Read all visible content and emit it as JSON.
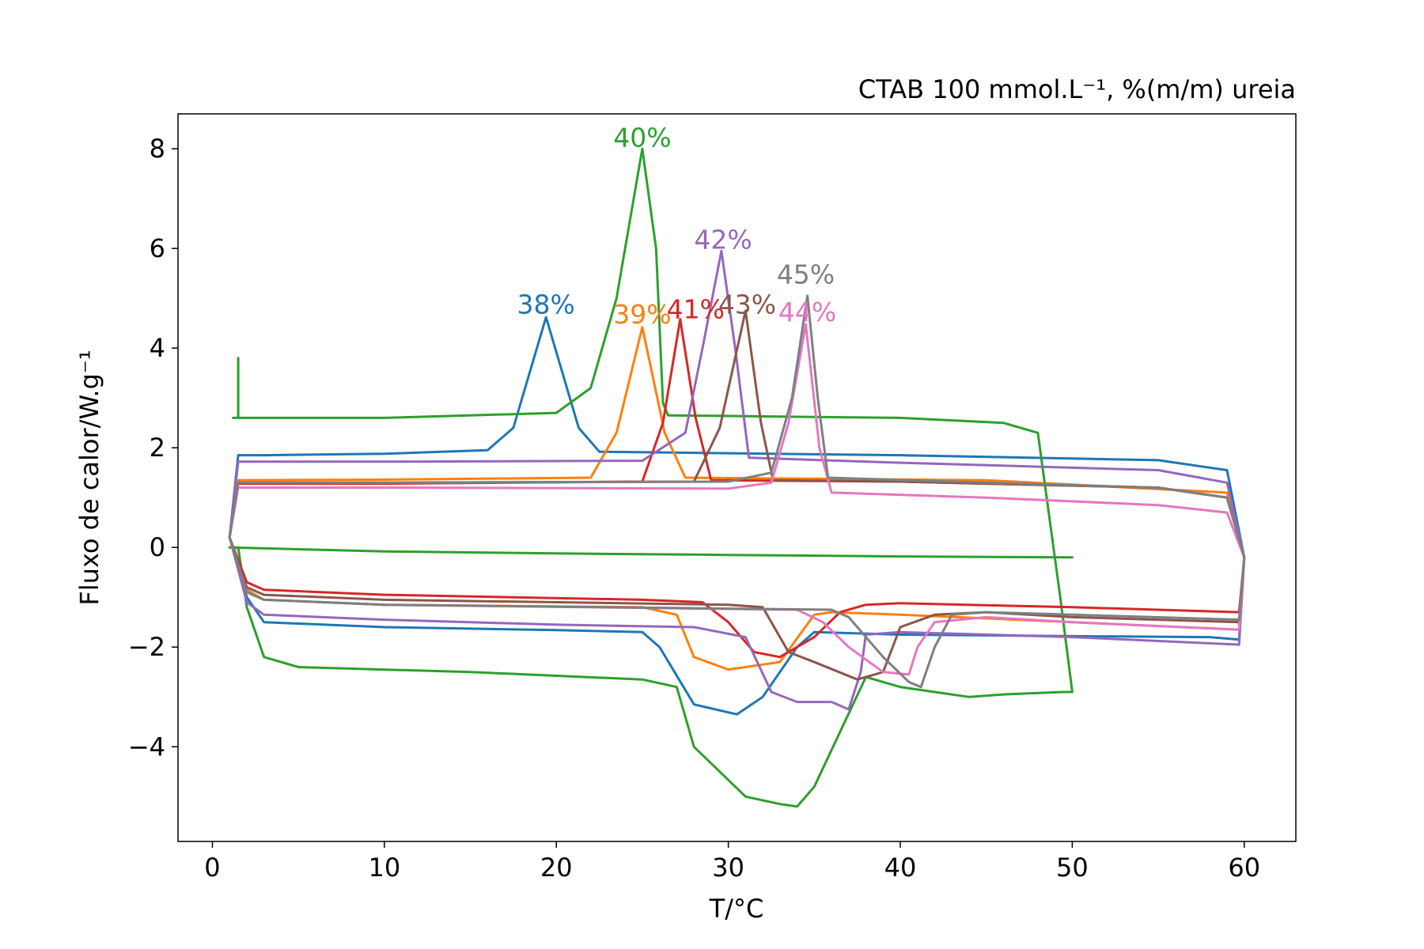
{
  "chart_data": {
    "type": "line",
    "title": "CTAB 100 mmol.L⁻¹, %(m/m) ureia",
    "title_loc": "right",
    "xlabel": "T/°C",
    "ylabel": "Fluxo de calor/W.g⁻¹",
    "xlim": [
      -2,
      63
    ],
    "ylim": [
      -5.9,
      8.7
    ],
    "xticks": [
      0,
      10,
      20,
      30,
      40,
      50,
      60
    ],
    "yticks": [
      -4,
      -2,
      0,
      2,
      4,
      6,
      8
    ],
    "ytick_labels": [
      "−4",
      "−2",
      "0",
      "2",
      "4",
      "6",
      "8"
    ],
    "grid": false,
    "legend": "none",
    "series": [
      {
        "color": "#1f77b4",
        "label": "38%",
        "label_pos": [
          19.4,
          4.6
        ],
        "x": [
          1,
          1.5,
          3,
          10,
          16,
          17.5,
          19.4,
          21.3,
          22.5,
          40,
          55,
          59,
          60,
          59.7,
          58,
          50,
          40,
          35,
          34,
          32,
          30.5,
          28,
          26,
          25,
          20,
          10,
          3,
          2,
          1
        ],
        "y": [
          0.2,
          1.85,
          1.85,
          1.88,
          1.95,
          2.4,
          4.62,
          2.4,
          1.92,
          1.85,
          1.75,
          1.55,
          -0.2,
          -1.85,
          -1.8,
          -1.78,
          -1.75,
          -1.7,
          -2.0,
          -3.0,
          -3.35,
          -3.15,
          -2.0,
          -1.7,
          -1.66,
          -1.6,
          -1.5,
          -1.0,
          0.2
        ]
      },
      {
        "color": "#ff7f0e",
        "label": "39%",
        "label_pos": [
          25.0,
          4.4
        ],
        "x": [
          1,
          1.5,
          10,
          22,
          23.5,
          25,
          26.3,
          27.5,
          45,
          59,
          60,
          59.7,
          50,
          40,
          36,
          35,
          33,
          30,
          28,
          27,
          25,
          10,
          3,
          2,
          1
        ],
        "y": [
          0.2,
          1.35,
          1.36,
          1.4,
          2.3,
          4.42,
          2.3,
          1.4,
          1.35,
          1.1,
          -0.2,
          -1.65,
          -1.5,
          -1.35,
          -1.3,
          -1.35,
          -2.3,
          -2.45,
          -2.2,
          -1.35,
          -1.2,
          -1.15,
          -1.05,
          -0.85,
          0.2
        ]
      },
      {
        "color": "#2ca02c",
        "label": "40%",
        "label_pos": [
          25.0,
          7.95
        ],
        "x": [
          1.5,
          1.5,
          1.2,
          1.4,
          10,
          20,
          22,
          23.5,
          25,
          25.8,
          26.2,
          26.5,
          40,
          46,
          48,
          49.3,
          50,
          50,
          49.5,
          46,
          44,
          40,
          38,
          35,
          34,
          33,
          31,
          28,
          27,
          25,
          15,
          5,
          3,
          2,
          1.5,
          1
        ],
        "y": [
          3.8,
          2.6,
          2.6,
          2.6,
          2.6,
          2.7,
          3.2,
          5.0,
          8.0,
          6.0,
          2.9,
          2.65,
          2.6,
          2.5,
          2.3,
          -1.0,
          -2.9,
          -2.9,
          -2.9,
          -2.95,
          -3.0,
          -2.8,
          -2.6,
          -4.8,
          -5.2,
          -5.15,
          -5.0,
          -4.0,
          -2.8,
          -2.65,
          -2.5,
          -2.4,
          -2.2,
          -1.2,
          0.0,
          0.0
        ]
      },
      {
        "color": "#2ca02c",
        "label": "",
        "x": [
          1,
          10,
          20,
          30,
          40,
          50
        ],
        "y": [
          0.0,
          -0.08,
          -0.12,
          -0.15,
          -0.18,
          -0.2
        ]
      },
      {
        "color": "#d62728",
        "label": "41%",
        "label_pos": [
          28.1,
          4.5
        ],
        "x": [
          1,
          1.5,
          10,
          25,
          26.2,
          27.2,
          28.1,
          29,
          40,
          55,
          59,
          60,
          59.7,
          50,
          40,
          38,
          36.5,
          35,
          33,
          31.5,
          30,
          28.5,
          25,
          10,
          3,
          2,
          1
        ],
        "y": [
          0.2,
          1.28,
          1.28,
          1.32,
          2.5,
          4.58,
          2.6,
          1.35,
          1.32,
          1.2,
          1.0,
          -0.2,
          -1.3,
          -1.2,
          -1.12,
          -1.15,
          -1.3,
          -1.8,
          -2.2,
          -2.1,
          -1.5,
          -1.1,
          -1.05,
          -0.95,
          -0.85,
          -0.7,
          0.2
        ]
      },
      {
        "color": "#9467bd",
        "label": "42%",
        "label_pos": [
          29.7,
          5.9
        ],
        "x": [
          1,
          1.5,
          10,
          25,
          27.5,
          28.5,
          29.6,
          30.4,
          31.2,
          40,
          55,
          59,
          60,
          59.7,
          50,
          40,
          38,
          37.7,
          37,
          36,
          34,
          32.5,
          31,
          28,
          20,
          10,
          3,
          2,
          1
        ],
        "y": [
          0.2,
          1.72,
          1.72,
          1.74,
          2.3,
          4.0,
          5.95,
          4.0,
          1.8,
          1.7,
          1.55,
          1.3,
          -0.2,
          -1.95,
          -1.8,
          -1.7,
          -1.75,
          -2.5,
          -3.25,
          -3.1,
          -3.1,
          -2.9,
          -1.8,
          -1.6,
          -1.55,
          -1.45,
          -1.35,
          -1.1,
          0.2
        ]
      },
      {
        "color": "#8c564b",
        "label": "43%",
        "label_pos": [
          31.1,
          4.6
        ],
        "x": [
          1,
          1.5,
          10,
          28,
          29.5,
          31.0,
          31.9,
          32.6,
          40,
          55,
          59,
          60,
          59.7,
          50,
          45,
          42,
          40,
          39,
          37.5,
          35,
          33.5,
          32,
          30,
          10,
          3,
          2,
          1
        ],
        "y": [
          0.2,
          1.3,
          1.3,
          1.32,
          2.4,
          4.75,
          2.5,
          1.35,
          1.32,
          1.2,
          1.0,
          -0.2,
          -1.5,
          -1.4,
          -1.3,
          -1.35,
          -1.6,
          -2.5,
          -2.65,
          -2.3,
          -2.1,
          -1.2,
          -1.15,
          -1.05,
          -0.95,
          -0.8,
          0.2
        ]
      },
      {
        "color": "#e377c2",
        "label": "44%",
        "label_pos": [
          34.6,
          4.45
        ],
        "x": [
          1,
          1.5,
          10,
          30,
          32.5,
          33.5,
          34.5,
          35.3,
          36,
          45,
          55,
          59,
          60,
          59.7,
          50,
          45,
          42,
          41,
          40.5,
          39,
          37,
          35.5,
          34,
          10,
          3,
          2,
          1
        ],
        "y": [
          0.2,
          1.2,
          1.2,
          1.18,
          1.3,
          2.5,
          4.48,
          2.0,
          1.1,
          1.0,
          0.85,
          0.7,
          -0.2,
          -1.65,
          -1.5,
          -1.4,
          -1.5,
          -2.0,
          -2.55,
          -2.5,
          -2.0,
          -1.5,
          -1.25,
          -1.15,
          -1.05,
          -0.9,
          0.2
        ]
      },
      {
        "color": "#7f7f7f",
        "label": "45%",
        "label_pos": [
          34.5,
          5.2
        ],
        "x": [
          1,
          1.5,
          10,
          30,
          32.5,
          33.7,
          34.6,
          35.2,
          35.8,
          45,
          55,
          59,
          60,
          59.7,
          50,
          45,
          43,
          42,
          41.2,
          40.5,
          39,
          37,
          36,
          10,
          3,
          2,
          1
        ],
        "y": [
          0.2,
          1.3,
          1.3,
          1.32,
          1.5,
          3.0,
          5.05,
          3.0,
          1.4,
          1.3,
          1.2,
          1.0,
          -0.2,
          -1.45,
          -1.35,
          -1.3,
          -1.35,
          -2.0,
          -2.8,
          -2.7,
          -2.2,
          -1.4,
          -1.25,
          -1.15,
          -1.05,
          -0.9,
          0.2
        ]
      }
    ]
  }
}
